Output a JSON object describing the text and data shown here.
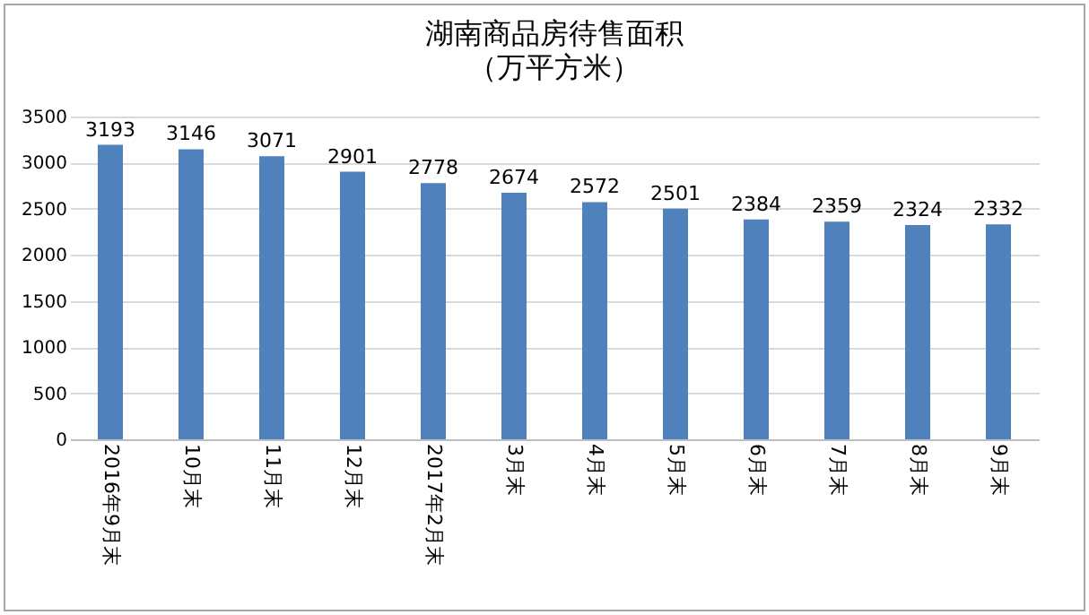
{
  "chart_data": {
    "type": "bar",
    "title": "湖南商品房待售面积",
    "subtitle": "（万平方米）",
    "categories": [
      "2016年9月末",
      "10月末",
      "11月末",
      "12月末",
      "2017年2月末",
      "3月末",
      "4月末",
      "5月末",
      "6月末",
      "7月末",
      "8月末",
      "9月末"
    ],
    "values": [
      3193,
      3146,
      3071,
      2901,
      2778,
      2674,
      2572,
      2501,
      2384,
      2359,
      2324,
      2332
    ],
    "color": "#4f81bd",
    "ylim": [
      0,
      3500
    ],
    "yticks": [
      0,
      500,
      1000,
      1500,
      2000,
      2500,
      3000,
      3500
    ],
    "grid": "y",
    "data_labels": true
  }
}
